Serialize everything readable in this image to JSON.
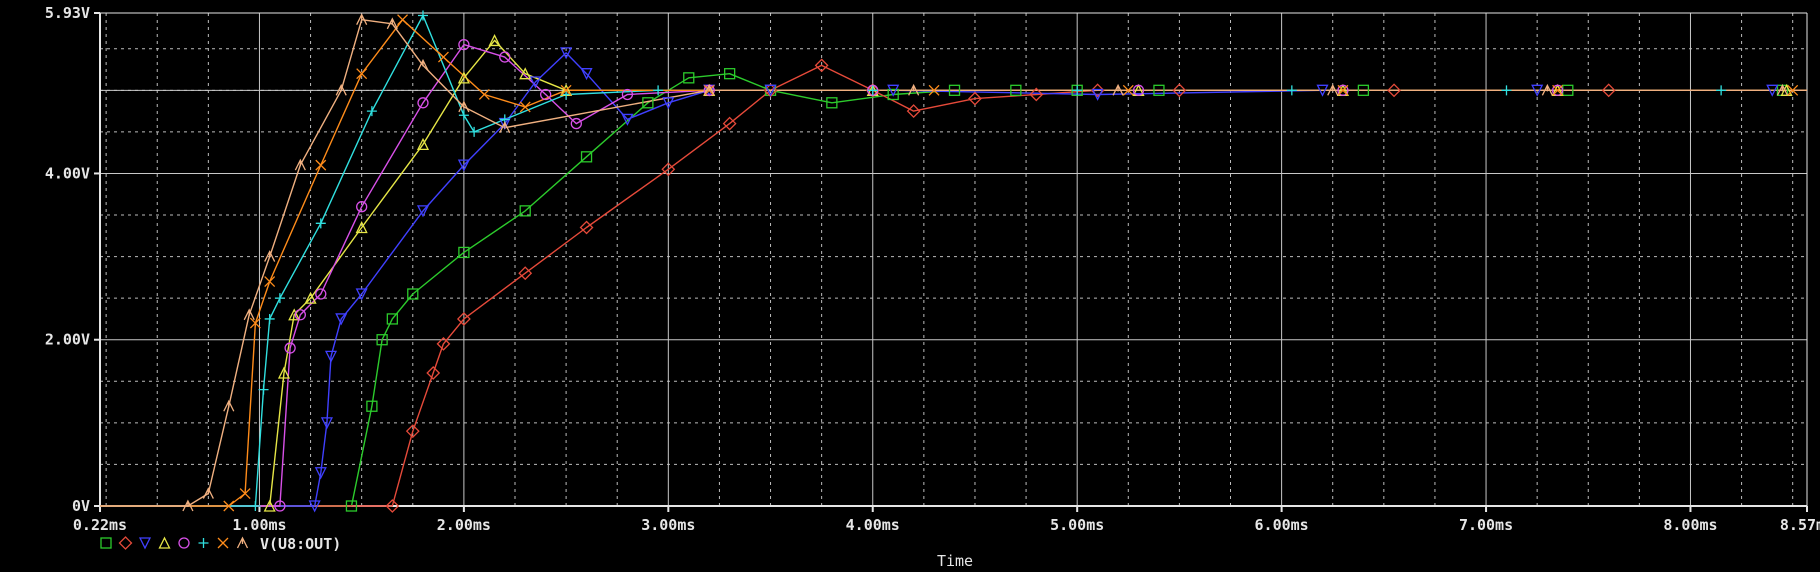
{
  "chart_data": {
    "type": "line",
    "xlabel": "Time",
    "ylabel": "",
    "xlim": [
      0.22,
      8.57
    ],
    "ylim": [
      0,
      5.93
    ],
    "x_ticks": [
      0.22,
      1.0,
      2.0,
      3.0,
      4.0,
      5.0,
      6.0,
      7.0,
      8.0,
      8.57
    ],
    "x_tick_labels": [
      "0.22ms",
      "1.00ms",
      "2.00ms",
      "3.00ms",
      "4.00ms",
      "5.00ms",
      "6.00ms",
      "7.00ms",
      "8.00ms",
      "8.57ms"
    ],
    "y_ticks": [
      0,
      2.0,
      4.0,
      5.93
    ],
    "y_tick_labels": [
      "0V",
      "2.00V",
      "4.00V",
      "5.93V"
    ],
    "grid": true,
    "legend_text": "V(U8:OUT)",
    "legend_placement": "bottom-left",
    "colors": {
      "background": "#000000",
      "axis": "#e6e6e6",
      "grid_major": "#c8c8c8",
      "grid_minor": "#bcbcbc",
      "text": "#e6e6e6"
    },
    "series": [
      {
        "marker": "square",
        "color": "#2ccb2c",
        "x": [
          0.22,
          1.45,
          1.55,
          1.6,
          1.65,
          1.75,
          2.0,
          2.3,
          2.6,
          2.9,
          3.1,
          3.3,
          3.5,
          3.8,
          4.1,
          4.4,
          4.7,
          5.0,
          5.4,
          6.4,
          7.4,
          8.45,
          8.57
        ],
        "y": [
          0,
          0,
          1.2,
          2.0,
          2.25,
          2.55,
          3.05,
          3.55,
          4.2,
          4.85,
          5.15,
          5.2,
          5.0,
          4.85,
          4.95,
          5.0,
          5.0,
          5.0,
          5.0,
          5.0,
          5.0,
          5.0,
          5.0
        ]
      },
      {
        "marker": "diamond",
        "color": "#e64a3a",
        "x": [
          0.22,
          1.65,
          1.75,
          1.85,
          1.9,
          2.0,
          2.3,
          2.6,
          3.0,
          3.3,
          3.5,
          3.75,
          4.0,
          4.2,
          4.5,
          4.8,
          5.1,
          5.5,
          6.55,
          7.6,
          8.57
        ],
        "y": [
          0,
          0,
          0.9,
          1.6,
          1.95,
          2.25,
          2.8,
          3.35,
          4.05,
          4.6,
          5.0,
          5.3,
          5.0,
          4.75,
          4.9,
          4.95,
          5.0,
          5.0,
          5.0,
          5.0,
          5.0
        ]
      },
      {
        "marker": "triangle-down",
        "color": "#4040ff",
        "x": [
          0.22,
          1.27,
          1.3,
          1.33,
          1.35,
          1.4,
          1.5,
          1.8,
          2.0,
          2.2,
          2.35,
          2.5,
          2.6,
          2.8,
          3.0,
          3.2,
          3.5,
          4.1,
          5.1,
          6.2,
          7.25,
          8.4,
          8.57
        ],
        "y": [
          0,
          0,
          0.4,
          1.0,
          1.8,
          2.25,
          2.55,
          3.55,
          4.1,
          4.6,
          5.1,
          5.45,
          5.2,
          4.65,
          4.85,
          5.0,
          5.0,
          5.0,
          4.95,
          5.0,
          5.0,
          5.0,
          5.0
        ]
      },
      {
        "marker": "triangle-up",
        "color": "#e6e646",
        "x": [
          0.22,
          1.05,
          1.12,
          1.17,
          1.25,
          1.5,
          1.8,
          2.0,
          2.15,
          2.3,
          2.5,
          3.2,
          4.0,
          5.3,
          6.3,
          7.35,
          8.47,
          8.57
        ],
        "y": [
          0,
          0,
          1.6,
          2.3,
          2.5,
          3.35,
          4.35,
          5.15,
          5.6,
          5.2,
          5.0,
          5.0,
          5.0,
          5.0,
          5.0,
          5.0,
          5.0,
          5.0
        ]
      },
      {
        "marker": "circle",
        "color": "#d850e8",
        "x": [
          0.22,
          1.1,
          1.15,
          1.2,
          1.3,
          1.5,
          1.8,
          2.0,
          2.2,
          2.4,
          2.55,
          2.8,
          3.2,
          4.0,
          5.3,
          6.3,
          7.35,
          8.57
        ],
        "y": [
          0,
          0,
          1.9,
          2.3,
          2.55,
          3.6,
          4.85,
          5.55,
          5.4,
          4.95,
          4.6,
          4.95,
          5.0,
          5.0,
          5.0,
          5.0,
          5.0,
          5.0
        ]
      },
      {
        "marker": "plus",
        "color": "#30e0e0",
        "x": [
          0.22,
          0.98,
          1.02,
          1.05,
          1.1,
          1.3,
          1.55,
          1.8,
          2.0,
          2.05,
          2.2,
          2.5,
          2.95,
          4.0,
          5.0,
          6.05,
          7.1,
          8.15,
          8.57
        ],
        "y": [
          0,
          0,
          1.4,
          2.25,
          2.5,
          3.4,
          4.75,
          5.9,
          4.7,
          4.5,
          4.65,
          4.95,
          5.0,
          5.0,
          5.0,
          5.0,
          5.0,
          5.0,
          5.0
        ]
      },
      {
        "marker": "x",
        "color": "#ff8c1a",
        "x": [
          0.22,
          0.85,
          0.93,
          0.98,
          1.05,
          1.3,
          1.5,
          1.7,
          1.9,
          2.1,
          2.3,
          2.5,
          3.2,
          4.3,
          5.25,
          6.3,
          7.35,
          8.5,
          8.57
        ],
        "y": [
          0,
          0,
          0.15,
          2.2,
          2.7,
          4.1,
          5.2,
          5.85,
          5.4,
          4.95,
          4.8,
          5.0,
          5.0,
          5.0,
          5.0,
          5.0,
          5.0,
          5.0,
          5.0
        ]
      },
      {
        "marker": "lambda",
        "color": "#f0b080",
        "x": [
          0.22,
          0.65,
          0.75,
          0.85,
          0.95,
          1.05,
          1.2,
          1.4,
          1.5,
          1.65,
          1.8,
          2.0,
          2.2,
          3.2,
          4.2,
          5.2,
          6.25,
          7.3,
          8.45,
          8.57
        ],
        "y": [
          0,
          0,
          0.15,
          1.2,
          2.3,
          3.0,
          4.1,
          5.0,
          5.85,
          5.8,
          5.3,
          4.8,
          4.55,
          5.0,
          5.0,
          5.0,
          5.0,
          5.0,
          5.0,
          5.0
        ]
      }
    ]
  }
}
